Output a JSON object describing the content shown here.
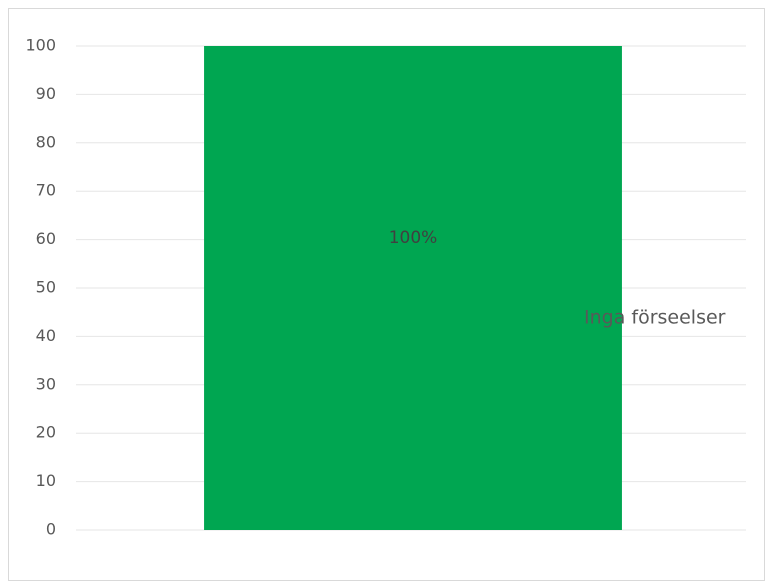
{
  "chart_data": {
    "type": "bar",
    "categories": [
      null
    ],
    "series": [
      {
        "name": "Inga förseelser",
        "color": "#00a651",
        "values": [
          100
        ],
        "value_labels": [
          "100%"
        ]
      }
    ],
    "ylim": [
      0,
      100
    ],
    "yticks": [
      0,
      10,
      20,
      30,
      40,
      50,
      60,
      70,
      80,
      90,
      100
    ],
    "grid": true,
    "legend": "right"
  }
}
